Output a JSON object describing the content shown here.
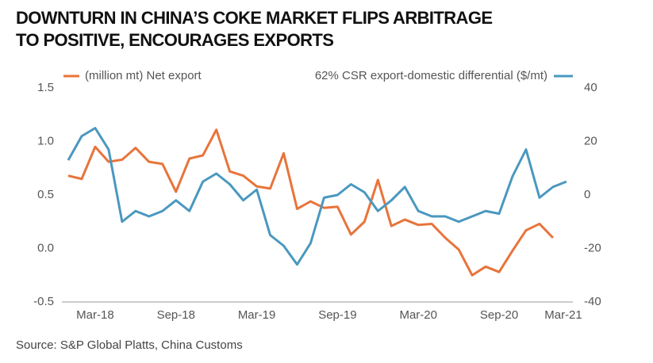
{
  "chart_data": {
    "type": "line",
    "title": [
      "DOWNTURN IN CHINA’S COKE MARKET FLIPS ARBITRAGE",
      "TO POSITIVE, ENCOURAGES EXPORTS"
    ],
    "source": "Source: S&P Global Platts, China Customs",
    "categories": [
      null,
      null,
      "Mar-18",
      null,
      null,
      null,
      null,
      null,
      "Sep-18",
      null,
      null,
      null,
      null,
      null,
      "Mar-19",
      null,
      null,
      null,
      null,
      null,
      "Sep-19",
      null,
      null,
      null,
      null,
      null,
      "Mar-20",
      null,
      null,
      null,
      null,
      null,
      "Sep-20",
      null,
      null,
      null,
      null,
      null,
      "Mar-21"
    ],
    "series": [
      {
        "name": "(million mt) Net export",
        "color": "#e8743b",
        "axis": "y",
        "values": [
          0.68,
          0.65,
          0.95,
          0.81,
          0.83,
          0.94,
          0.81,
          0.79,
          0.53,
          0.84,
          0.87,
          1.11,
          0.72,
          0.68,
          0.58,
          0.56,
          0.89,
          0.37,
          0.44,
          0.38,
          0.39,
          0.13,
          0.25,
          0.64,
          0.21,
          0.27,
          0.22,
          0.23,
          0.1,
          -0.01,
          -0.25,
          -0.17,
          -0.22,
          -0.02,
          0.17,
          0.23,
          0.1,
          null,
          null
        ]
      },
      {
        "name": "62% CSR export-domestic differential ($/mt)",
        "color": "#4a98bf",
        "axis": "y2",
        "values": [
          13,
          22,
          25,
          17,
          -10,
          -6,
          -8,
          -6,
          -2,
          -6,
          5,
          8,
          4,
          -2,
          2,
          -15,
          -19,
          -26,
          -18,
          -1,
          0,
          4,
          1,
          -6,
          -2,
          3,
          -6,
          -8,
          -8,
          -10,
          -8,
          -6,
          -7,
          7,
          17,
          -1,
          3,
          5,
          null
        ]
      }
    ],
    "ylim": [
      -0.5,
      1.5
    ],
    "yticks": [
      -0.5,
      {
        "value": 0,
        "label": "0.0"
      },
      0.5,
      {
        "value": 1,
        "label": "1.0"
      },
      1.5
    ],
    "y2lim": [
      -40,
      40
    ],
    "y2ticks": [
      -40,
      -20,
      0,
      20,
      40
    ],
    "grid": false
  }
}
